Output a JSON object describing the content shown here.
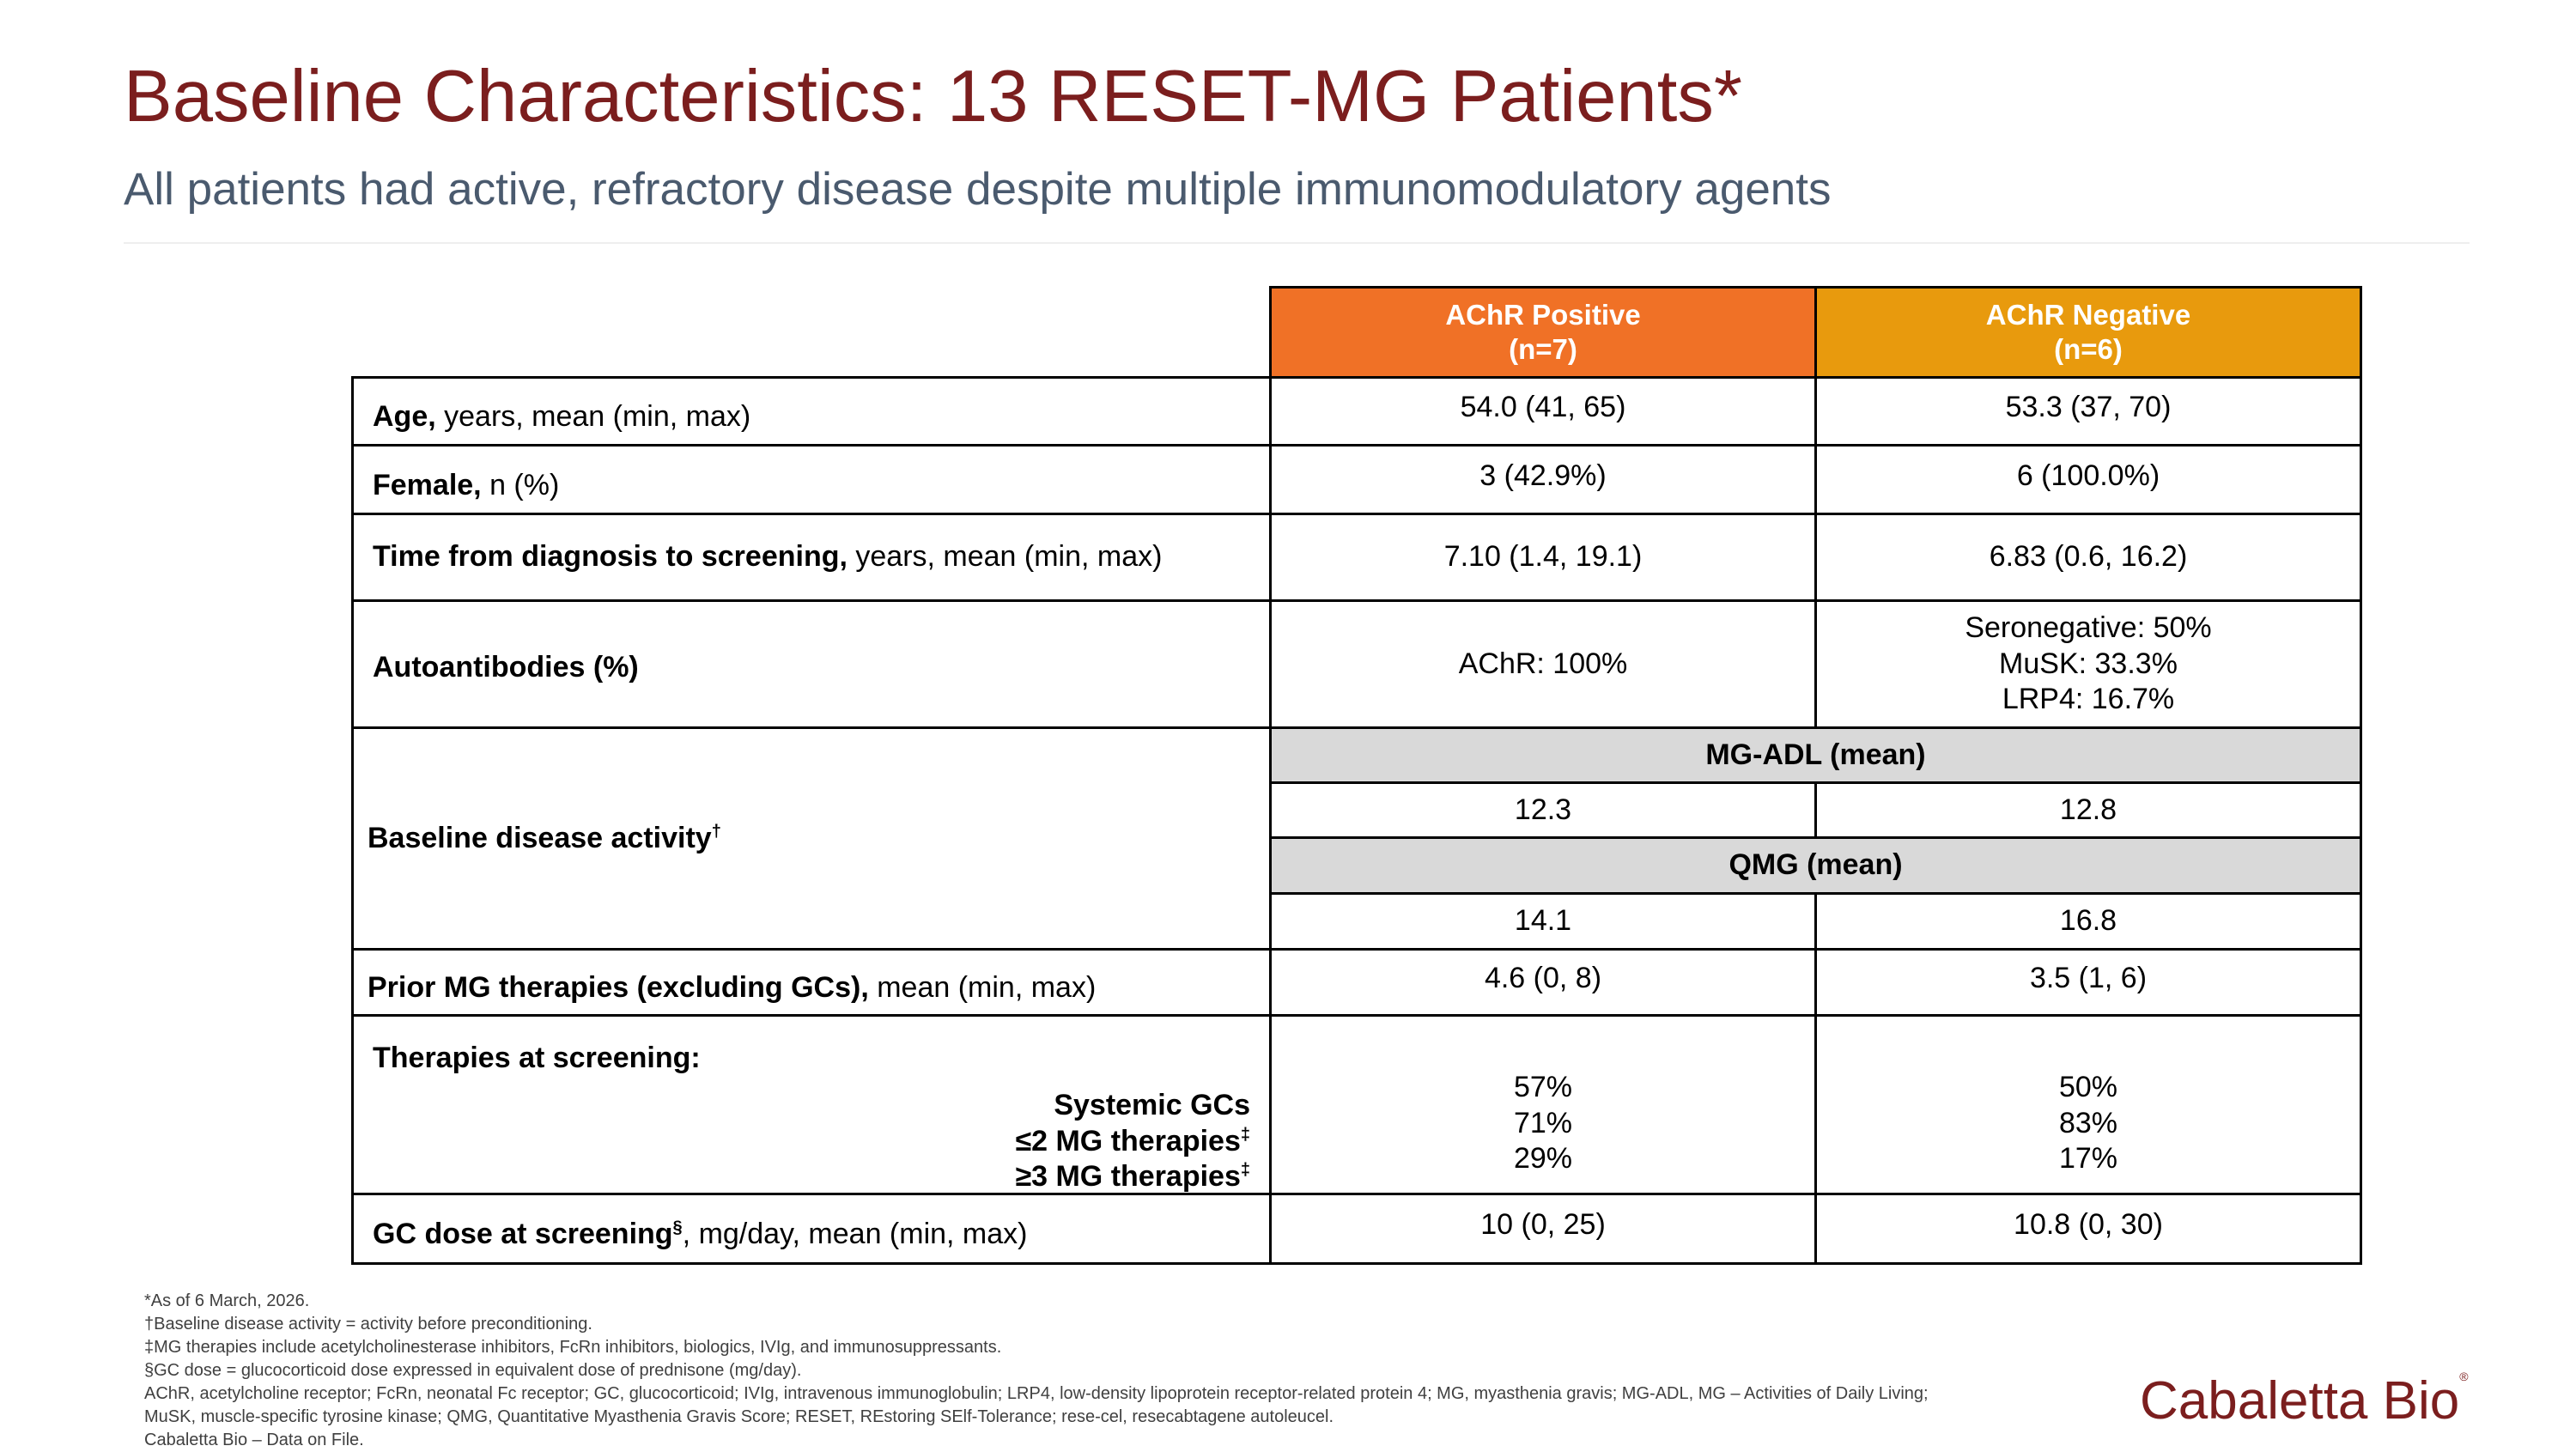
{
  "title": "Baseline Characteristics: 13 RESET-MG Patients*",
  "subtitle": "All patients had active, refractory disease despite multiple immunomodulatory agents",
  "columns": {
    "pos_line1": "AChR Positive",
    "pos_line2": "(n=7)",
    "neg_line1": "AChR Negative",
    "neg_line2": "(n=6)",
    "pos_color": "#f07126",
    "neg_color": "#e89a0d"
  },
  "rows": {
    "age": {
      "bold": "Age,",
      "rest": " years, mean (min, max)",
      "pos": "54.0 (41, 65)",
      "neg": "53.3 (37, 70)"
    },
    "female": {
      "bold": "Female,",
      "rest": " n (%)",
      "pos": "3 (42.9%)",
      "neg": "6 (100.0%)"
    },
    "time": {
      "bold": "Time from diagnosis to screening,",
      "rest": " years, mean (min, max)",
      "pos": "7.10 (1.4, 19.1)",
      "neg": "6.83 (0.6, 16.2)"
    },
    "auto": {
      "bold": "Autoantibodies (%)",
      "pos": "AChR: 100%",
      "neg1": "Seronegative: 50%",
      "neg2": "MuSK: 33.3%",
      "neg3": "LRP4: 16.7%"
    },
    "baseline": {
      "label": "Baseline disease activity",
      "sup": "†",
      "mgadl_label": "MG-ADL (mean)",
      "mgadl_pos": "12.3",
      "mgadl_neg": "12.8",
      "qmg_label": "QMG (mean)",
      "qmg_pos": "14.1",
      "qmg_neg": "16.8"
    },
    "prior": {
      "bold": "Prior MG therapies (excluding GCs),",
      "rest": " mean (min, max)",
      "pos": "4.6 (0, 8)",
      "neg": "3.5 (1, 6)"
    },
    "therapies": {
      "head": "Therapies at screening:",
      "item1": "Systemic GCs",
      "item2": "≤2 MG therapies",
      "item3": "≥3 MG therapies",
      "sup": "‡",
      "pos1": "57%",
      "pos2": "71%",
      "pos3": "29%",
      "neg1": "50%",
      "neg2": "83%",
      "neg3": "17%"
    },
    "gc": {
      "bold": "GC dose at screening",
      "sup": "§",
      "rest": ", mg/day, mean (min, max)",
      "pos": "10 (0, 25)",
      "neg": "10.8 (0, 30)"
    }
  },
  "footnotes": [
    "*As of 6 March, 2026.",
    "†Baseline disease activity = activity before preconditioning.",
    "‡MG therapies include acetylcholinesterase inhibitors, FcRn inhibitors, biologics, IVIg, and immunosuppressants.",
    "§GC dose = glucocorticoid dose expressed in equivalent dose of prednisone (mg/day).",
    "AChR, acetylcholine receptor; FcRn, neonatal Fc receptor; GC, glucocorticoid; IVIg, intravenous immunoglobulin; LRP4, low-density lipoprotein receptor-related protein 4; MG, myasthenia gravis; MG-ADL, MG – Activities of Daily Living;",
    "MuSK, muscle-specific tyrosine kinase; QMG, Quantitative Myasthenia Gravis Score; RESET, REstoring SElf-Tolerance; rese-cel, resecabtagene autoleucel.",
    "Cabaletta Bio – Data on File."
  ],
  "logo": {
    "text": "Cabaletta Bio",
    "mark": "®"
  }
}
